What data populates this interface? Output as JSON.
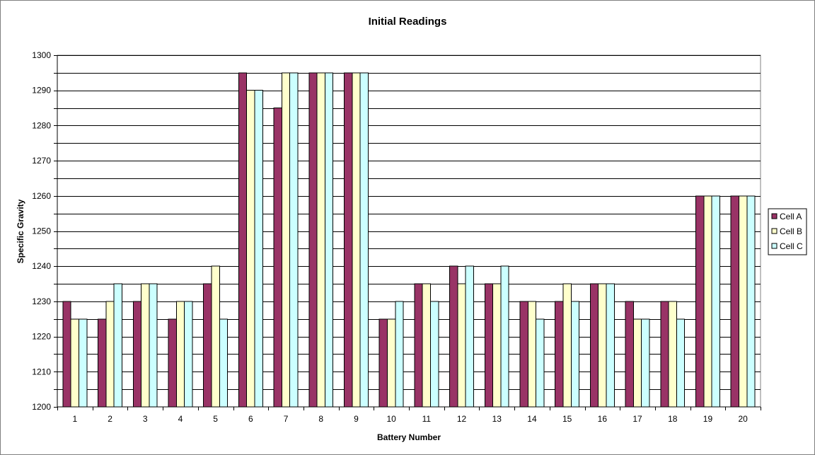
{
  "chart_data": {
    "type": "bar",
    "title": "Initial Readings",
    "xlabel": "Battery Number",
    "ylabel": "Specific Gravity",
    "ylim": [
      1200,
      1300
    ],
    "ytick_step": 10,
    "grid": true,
    "legend_position": "right",
    "categories": [
      "1",
      "2",
      "3",
      "4",
      "5",
      "6",
      "7",
      "8",
      "9",
      "10",
      "11",
      "12",
      "13",
      "14",
      "15",
      "16",
      "17",
      "18",
      "19",
      "20"
    ],
    "series": [
      {
        "name": "Cell A",
        "color": "#993366",
        "values": [
          1230,
          1225,
          1230,
          1225,
          1235,
          1295,
          1285,
          1295,
          1295,
          1225,
          1235,
          1240,
          1235,
          1230,
          1230,
          1235,
          1230,
          1230,
          1260,
          1260
        ]
      },
      {
        "name": "Cell B",
        "color": "#FFFFCC",
        "values": [
          1225,
          1230,
          1235,
          1230,
          1240,
          1290,
          1295,
          1295,
          1295,
          1225,
          1235,
          1235,
          1235,
          1230,
          1235,
          1235,
          1225,
          1230,
          1260,
          1260
        ]
      },
      {
        "name": "Cell C",
        "color": "#CCFFFF",
        "values": [
          1225,
          1235,
          1235,
          1230,
          1225,
          1290,
          1295,
          1295,
          1295,
          1230,
          1230,
          1240,
          1240,
          1225,
          1230,
          1235,
          1225,
          1225,
          1260,
          1260
        ]
      }
    ]
  }
}
